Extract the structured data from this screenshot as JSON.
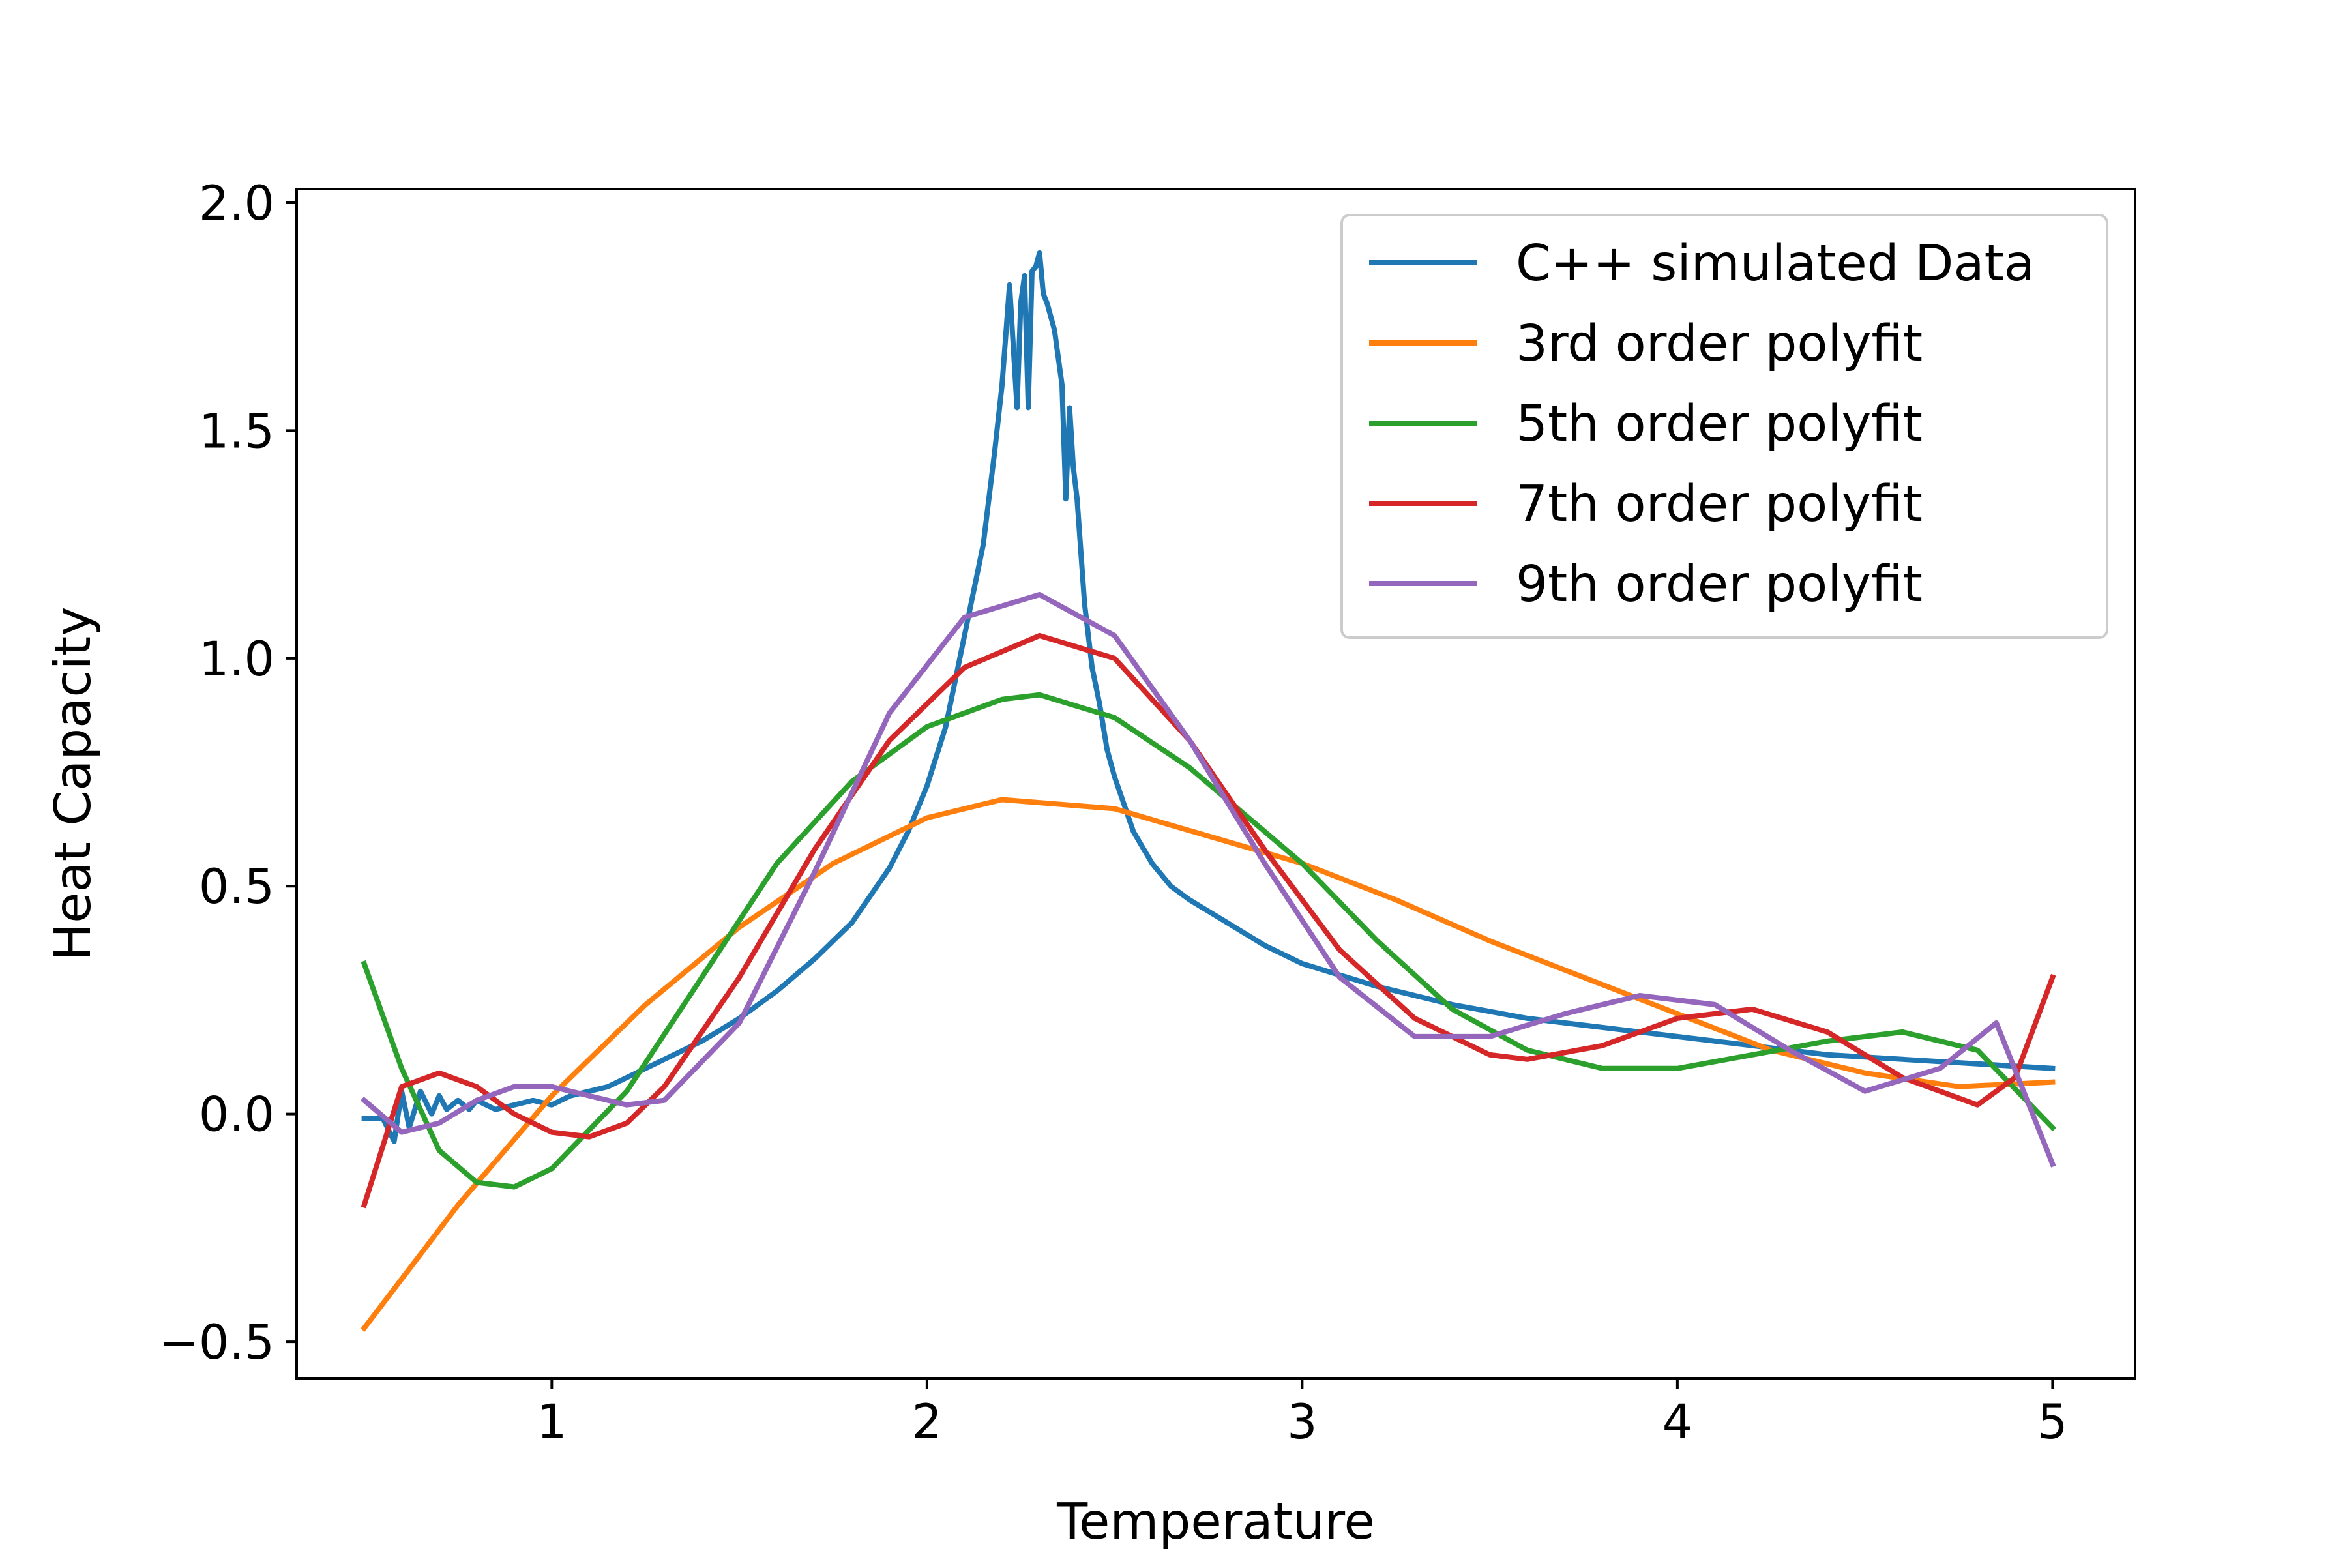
{
  "chart_data": {
    "type": "line",
    "title": "",
    "xlabel": "Temperature",
    "ylabel": "Heat Capacity",
    "xlim": [
      0.32,
      5.22
    ],
    "ylim": [
      -0.58,
      2.03
    ],
    "xticks": [
      1,
      2,
      3,
      4,
      5
    ],
    "xtick_labels": [
      "1",
      "2",
      "3",
      "4",
      "5"
    ],
    "yticks": [
      -0.5,
      0.0,
      0.5,
      1.0,
      1.5,
      2.0
    ],
    "ytick_labels": [
      "−0.5",
      "0.0",
      "0.5",
      "1.0",
      "1.5",
      "2.0"
    ],
    "grid": false,
    "legend_position": "top-right",
    "series": [
      {
        "name": "C++ simulated Data",
        "color": "#1f77b4",
        "x": [
          0.5,
          0.55,
          0.58,
          0.6,
          0.62,
          0.65,
          0.68,
          0.7,
          0.72,
          0.75,
          0.78,
          0.8,
          0.85,
          0.9,
          0.95,
          1.0,
          1.05,
          1.1,
          1.15,
          1.2,
          1.3,
          1.4,
          1.5,
          1.6,
          1.7,
          1.8,
          1.9,
          1.95,
          2.0,
          2.05,
          2.1,
          2.15,
          2.18,
          2.2,
          2.22,
          2.24,
          2.25,
          2.26,
          2.27,
          2.28,
          2.29,
          2.3,
          2.31,
          2.32,
          2.34,
          2.36,
          2.37,
          2.38,
          2.39,
          2.4,
          2.42,
          2.44,
          2.46,
          2.48,
          2.5,
          2.55,
          2.6,
          2.65,
          2.7,
          2.8,
          2.9,
          3.0,
          3.2,
          3.4,
          3.6,
          3.8,
          4.0,
          4.2,
          4.4,
          4.6,
          4.8,
          5.0
        ],
        "y": [
          -0.01,
          -0.01,
          -0.06,
          0.05,
          -0.03,
          0.05,
          0.0,
          0.04,
          0.01,
          0.03,
          0.01,
          0.03,
          0.01,
          0.02,
          0.03,
          0.02,
          0.04,
          0.05,
          0.06,
          0.08,
          0.12,
          0.16,
          0.21,
          0.27,
          0.34,
          0.42,
          0.54,
          0.62,
          0.72,
          0.85,
          1.05,
          1.25,
          1.45,
          1.6,
          1.82,
          1.55,
          1.78,
          1.84,
          1.55,
          1.85,
          1.86,
          1.89,
          1.8,
          1.78,
          1.72,
          1.6,
          1.35,
          1.55,
          1.42,
          1.35,
          1.12,
          0.98,
          0.9,
          0.8,
          0.74,
          0.62,
          0.55,
          0.5,
          0.47,
          0.42,
          0.37,
          0.33,
          0.28,
          0.24,
          0.21,
          0.19,
          0.17,
          0.15,
          0.13,
          0.12,
          0.11,
          0.1
        ]
      },
      {
        "name": "3rd order polyfit",
        "color": "#ff7f0e",
        "x": [
          0.5,
          0.75,
          1.0,
          1.25,
          1.5,
          1.75,
          2.0,
          2.2,
          2.5,
          2.75,
          3.0,
          3.25,
          3.5,
          3.75,
          4.0,
          4.25,
          4.5,
          4.75,
          5.0
        ],
        "y": [
          -0.47,
          -0.2,
          0.04,
          0.24,
          0.41,
          0.55,
          0.65,
          0.69,
          0.67,
          0.61,
          0.55,
          0.47,
          0.38,
          0.3,
          0.22,
          0.14,
          0.09,
          0.06,
          0.07
        ]
      },
      {
        "name": "5th order polyfit",
        "color": "#2ca02c",
        "x": [
          0.5,
          0.6,
          0.7,
          0.8,
          0.9,
          1.0,
          1.2,
          1.4,
          1.6,
          1.8,
          2.0,
          2.2,
          2.3,
          2.5,
          2.7,
          3.0,
          3.2,
          3.4,
          3.6,
          3.8,
          4.0,
          4.2,
          4.4,
          4.6,
          4.8,
          5.0
        ],
        "y": [
          0.33,
          0.1,
          -0.08,
          -0.15,
          -0.16,
          -0.12,
          0.05,
          0.3,
          0.55,
          0.73,
          0.85,
          0.91,
          0.92,
          0.87,
          0.76,
          0.55,
          0.38,
          0.23,
          0.14,
          0.1,
          0.1,
          0.13,
          0.16,
          0.18,
          0.14,
          -0.03
        ]
      },
      {
        "name": "7th order polyfit",
        "color": "#d62728",
        "x": [
          0.5,
          0.6,
          0.7,
          0.8,
          0.9,
          1.0,
          1.1,
          1.2,
          1.3,
          1.5,
          1.7,
          1.9,
          2.1,
          2.3,
          2.5,
          2.7,
          2.9,
          3.1,
          3.3,
          3.5,
          3.6,
          3.8,
          4.0,
          4.2,
          4.4,
          4.6,
          4.8,
          4.9,
          5.0
        ],
        "y": [
          -0.2,
          0.06,
          0.09,
          0.06,
          0.0,
          -0.04,
          -0.05,
          -0.02,
          0.06,
          0.3,
          0.58,
          0.82,
          0.98,
          1.05,
          1.0,
          0.82,
          0.58,
          0.36,
          0.21,
          0.13,
          0.12,
          0.15,
          0.21,
          0.23,
          0.18,
          0.08,
          0.02,
          0.08,
          0.3
        ]
      },
      {
        "name": "9th order polyfit",
        "color": "#9467bd",
        "x": [
          0.5,
          0.6,
          0.7,
          0.8,
          0.9,
          1.0,
          1.1,
          1.2,
          1.3,
          1.5,
          1.7,
          1.9,
          2.1,
          2.3,
          2.5,
          2.7,
          2.9,
          3.1,
          3.3,
          3.5,
          3.7,
          3.9,
          4.1,
          4.3,
          4.5,
          4.7,
          4.85,
          5.0
        ],
        "y": [
          0.03,
          -0.04,
          -0.02,
          0.03,
          0.06,
          0.06,
          0.04,
          0.02,
          0.03,
          0.2,
          0.53,
          0.88,
          1.09,
          1.14,
          1.05,
          0.82,
          0.55,
          0.3,
          0.17,
          0.17,
          0.22,
          0.26,
          0.24,
          0.14,
          0.05,
          0.1,
          0.2,
          -0.11
        ]
      }
    ]
  }
}
